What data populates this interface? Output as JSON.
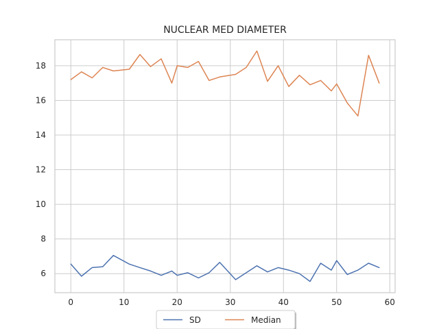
{
  "chart_data": {
    "type": "line",
    "title": "NUCLEAR MED DIAMETER",
    "xlabel": "",
    "ylabel": "",
    "xlim": [
      -3,
      61
    ],
    "ylim": [
      4.9,
      19.5
    ],
    "xticks": [
      0,
      10,
      20,
      30,
      40,
      50,
      60
    ],
    "yticks": [
      6,
      8,
      10,
      12,
      14,
      16,
      18
    ],
    "x": [
      0,
      2,
      4,
      6,
      8,
      11,
      13,
      15,
      17,
      19,
      20,
      22,
      24,
      26,
      28,
      31,
      33,
      35,
      37,
      39,
      41,
      43,
      45,
      47,
      49,
      50,
      52,
      54,
      56,
      58
    ],
    "series": [
      {
        "name": "SD",
        "color": "#4c72b0",
        "values": [
          6.55,
          5.85,
          6.35,
          6.4,
          7.05,
          6.55,
          6.35,
          6.15,
          5.9,
          6.15,
          5.9,
          6.05,
          5.75,
          6.05,
          6.65,
          5.65,
          6.05,
          6.45,
          6.1,
          6.35,
          6.2,
          6.0,
          5.55,
          6.6,
          6.2,
          6.75,
          5.95,
          6.2,
          6.6,
          6.35
        ]
      },
      {
        "name": "Median",
        "color": "#dd8452",
        "values": [
          17.2,
          17.65,
          17.3,
          17.9,
          17.7,
          17.8,
          18.65,
          17.95,
          18.4,
          17.0,
          18.0,
          17.9,
          18.25,
          17.15,
          17.35,
          17.5,
          17.9,
          18.85,
          17.1,
          18.0,
          16.8,
          17.45,
          16.9,
          17.15,
          16.55,
          16.95,
          15.85,
          15.1,
          18.6,
          17.0
        ]
      }
    ],
    "grid": true,
    "legend_position": "bottom-center"
  }
}
